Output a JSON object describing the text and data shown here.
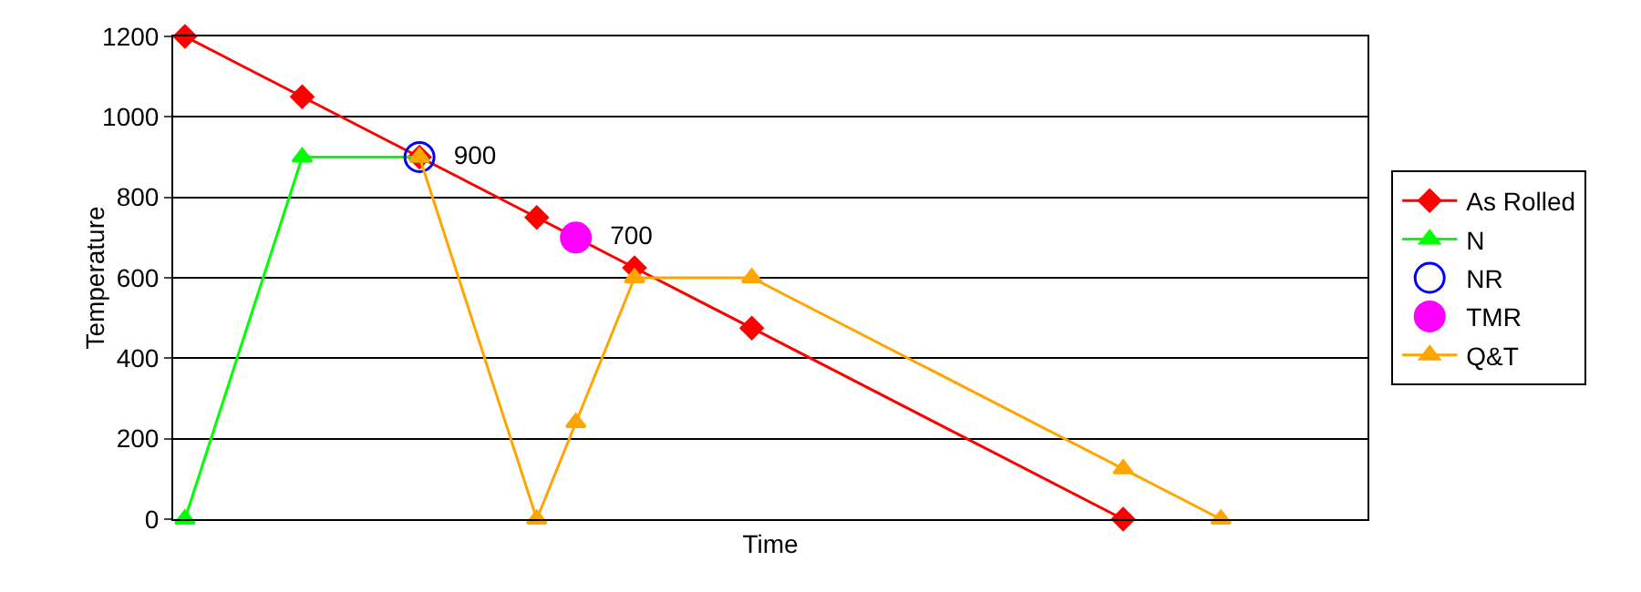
{
  "chart_data": {
    "type": "line",
    "xlabel": "Time",
    "ylabel": "Temperature",
    "categories": [
      null,
      null,
      null,
      null,
      null,
      null,
      null,
      null,
      null,
      null,
      null,
      null,
      null,
      null,
      null,
      null,
      null,
      null,
      null,
      null,
      null,
      null,
      null,
      null,
      null,
      null,
      null,
      null,
      null,
      null,
      null,
      null,
      null,
      null,
      null,
      null,
      null,
      null,
      null,
      null,
      null,
      null,
      null,
      null,
      null,
      null,
      null,
      null,
      null,
      null,
      null,
      null,
      null,
      null,
      null,
      null,
      null,
      null,
      null,
      null,
      null
    ],
    "ylim": [
      0,
      1200
    ],
    "yticks": [
      0,
      200,
      400,
      600,
      800,
      1000,
      1200
    ],
    "tick_labels": "y",
    "grid": "y",
    "legend": "right",
    "series": [
      {
        "name": "As Rolled",
        "color": "#ff0000",
        "marker": "diamond",
        "values": [
          1200,
          null,
          null,
          null,
          null,
          null,
          1050,
          null,
          null,
          null,
          null,
          null,
          900,
          null,
          null,
          null,
          null,
          null,
          750,
          null,
          null,
          null,
          null,
          625,
          null,
          null,
          null,
          null,
          null,
          475,
          null,
          null,
          null,
          null,
          null,
          null,
          null,
          null,
          null,
          null,
          null,
          null,
          null,
          null,
          null,
          null,
          null,
          null,
          0,
          null,
          null,
          null,
          null,
          null,
          null,
          null,
          null,
          null,
          null,
          null,
          null
        ]
      },
      {
        "name": "N",
        "color": "#00ff00",
        "marker": "triangle",
        "values": [
          0,
          null,
          null,
          null,
          null,
          null,
          900,
          null,
          null,
          null,
          null,
          null,
          900,
          null,
          null,
          null,
          null,
          null,
          null,
          null,
          null,
          null,
          null,
          null,
          null,
          null,
          null,
          null,
          null,
          null,
          null,
          null,
          null,
          null,
          null,
          null,
          null,
          null,
          null,
          null,
          null,
          null,
          null,
          null,
          null,
          null,
          null,
          null,
          null,
          null,
          null,
          null,
          null,
          null,
          null,
          null,
          null,
          null,
          null,
          null,
          null
        ]
      },
      {
        "name": "NR",
        "color": "#0000ff",
        "marker": "circle",
        "values": [
          null,
          null,
          null,
          null,
          null,
          null,
          null,
          null,
          null,
          null,
          null,
          null,
          900,
          null,
          null,
          null,
          null,
          null,
          null,
          null,
          null,
          null,
          null,
          null,
          null,
          null,
          null,
          null,
          null,
          null,
          null,
          null,
          null,
          null,
          null,
          null,
          null,
          null,
          null,
          null,
          null,
          null,
          null,
          null,
          null,
          null,
          null,
          null,
          null,
          null,
          null,
          null,
          null,
          null,
          null,
          null,
          null,
          null,
          null,
          null,
          null
        ],
        "value_labels": [
          null,
          null,
          null,
          null,
          null,
          null,
          null,
          null,
          null,
          null,
          null,
          null,
          "900",
          null,
          null,
          null,
          null,
          null,
          null,
          null,
          null,
          null,
          null,
          null,
          null,
          null,
          null,
          null,
          null,
          null,
          null,
          null,
          null,
          null,
          null,
          null,
          null,
          null,
          null,
          null,
          null,
          null,
          null,
          null,
          null,
          null,
          null,
          null,
          null,
          null,
          null,
          null,
          null,
          null,
          null,
          null,
          null,
          null,
          null,
          null,
          null
        ]
      },
      {
        "name": "TMR",
        "color": "#ff00ff",
        "marker": "circle",
        "values": [
          null,
          null,
          null,
          null,
          null,
          null,
          null,
          null,
          null,
          null,
          null,
          null,
          null,
          null,
          null,
          null,
          null,
          null,
          null,
          null,
          700,
          null,
          null,
          null,
          null,
          null,
          null,
          null,
          null,
          null,
          null,
          null,
          null,
          null,
          null,
          null,
          null,
          null,
          null,
          null,
          null,
          null,
          null,
          null,
          null,
          null,
          null,
          null,
          null,
          null,
          null,
          null,
          null,
          null,
          null,
          null,
          null,
          null,
          null,
          null,
          null
        ],
        "value_labels": [
          null,
          null,
          null,
          null,
          null,
          null,
          null,
          null,
          null,
          null,
          null,
          null,
          null,
          null,
          null,
          null,
          null,
          null,
          null,
          null,
          "700",
          null,
          null,
          null,
          null,
          null,
          null,
          null,
          null,
          null,
          null,
          null,
          null,
          null,
          null,
          null,
          null,
          null,
          null,
          null,
          null,
          null,
          null,
          null,
          null,
          null,
          null,
          null,
          null,
          null,
          null,
          null,
          null,
          null,
          null,
          null,
          null,
          null,
          null,
          null,
          null
        ]
      },
      {
        "name": "Q&T",
        "color": "#ffa500",
        "marker": "triangle",
        "values": [
          null,
          null,
          null,
          null,
          null,
          null,
          null,
          null,
          null,
          null,
          null,
          null,
          900,
          null,
          null,
          null,
          null,
          null,
          0,
          null,
          240,
          null,
          null,
          600,
          null,
          null,
          null,
          null,
          null,
          600,
          null,
          null,
          null,
          null,
          null,
          null,
          null,
          null,
          null,
          null,
          null,
          null,
          null,
          null,
          null,
          null,
          null,
          null,
          125,
          null,
          null,
          null,
          null,
          0,
          null,
          null,
          null,
          null,
          null,
          null,
          null
        ]
      }
    ]
  }
}
